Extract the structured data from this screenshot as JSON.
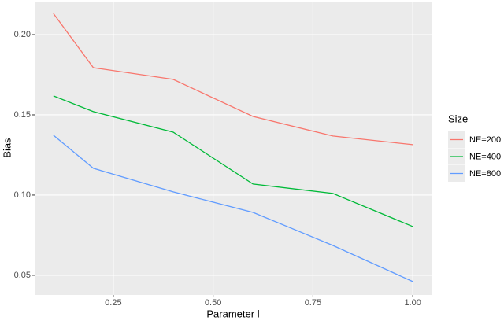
{
  "chart_data": {
    "type": "line",
    "x_label": "Parameter l",
    "y_label": "Bias",
    "x": [
      0.1,
      0.2,
      0.4,
      0.6,
      0.8,
      1.0
    ],
    "series": [
      {
        "name": "NE=200",
        "color": "#f8766d",
        "values": [
          0.2132,
          0.1794,
          0.1721,
          0.149,
          0.1368,
          0.1314
        ]
      },
      {
        "name": "NE=400",
        "color": "#00ba38",
        "values": [
          0.1618,
          0.152,
          0.1392,
          0.1069,
          0.101,
          0.0804
        ]
      },
      {
        "name": "NE=800",
        "color": "#619cff",
        "values": [
          0.1373,
          0.1167,
          0.102,
          0.0892,
          0.0686,
          0.0461
        ]
      }
    ],
    "legend_title": "Size",
    "legend_position": "right",
    "xlim": [
      0.053,
      1.049
    ],
    "xticks": [
      0.25,
      {
        "value": 0.5,
        "label": "0.50"
      },
      0.75,
      {
        "value": 1.0,
        "label": "1.00"
      }
    ],
    "ylim": [
      0.0377,
      0.2206
    ],
    "yticks": [
      0.05,
      {
        "value": 0.1,
        "label": "0.10"
      },
      0.15,
      {
        "value": 0.2,
        "label": "0.20"
      }
    ],
    "grid": true
  }
}
